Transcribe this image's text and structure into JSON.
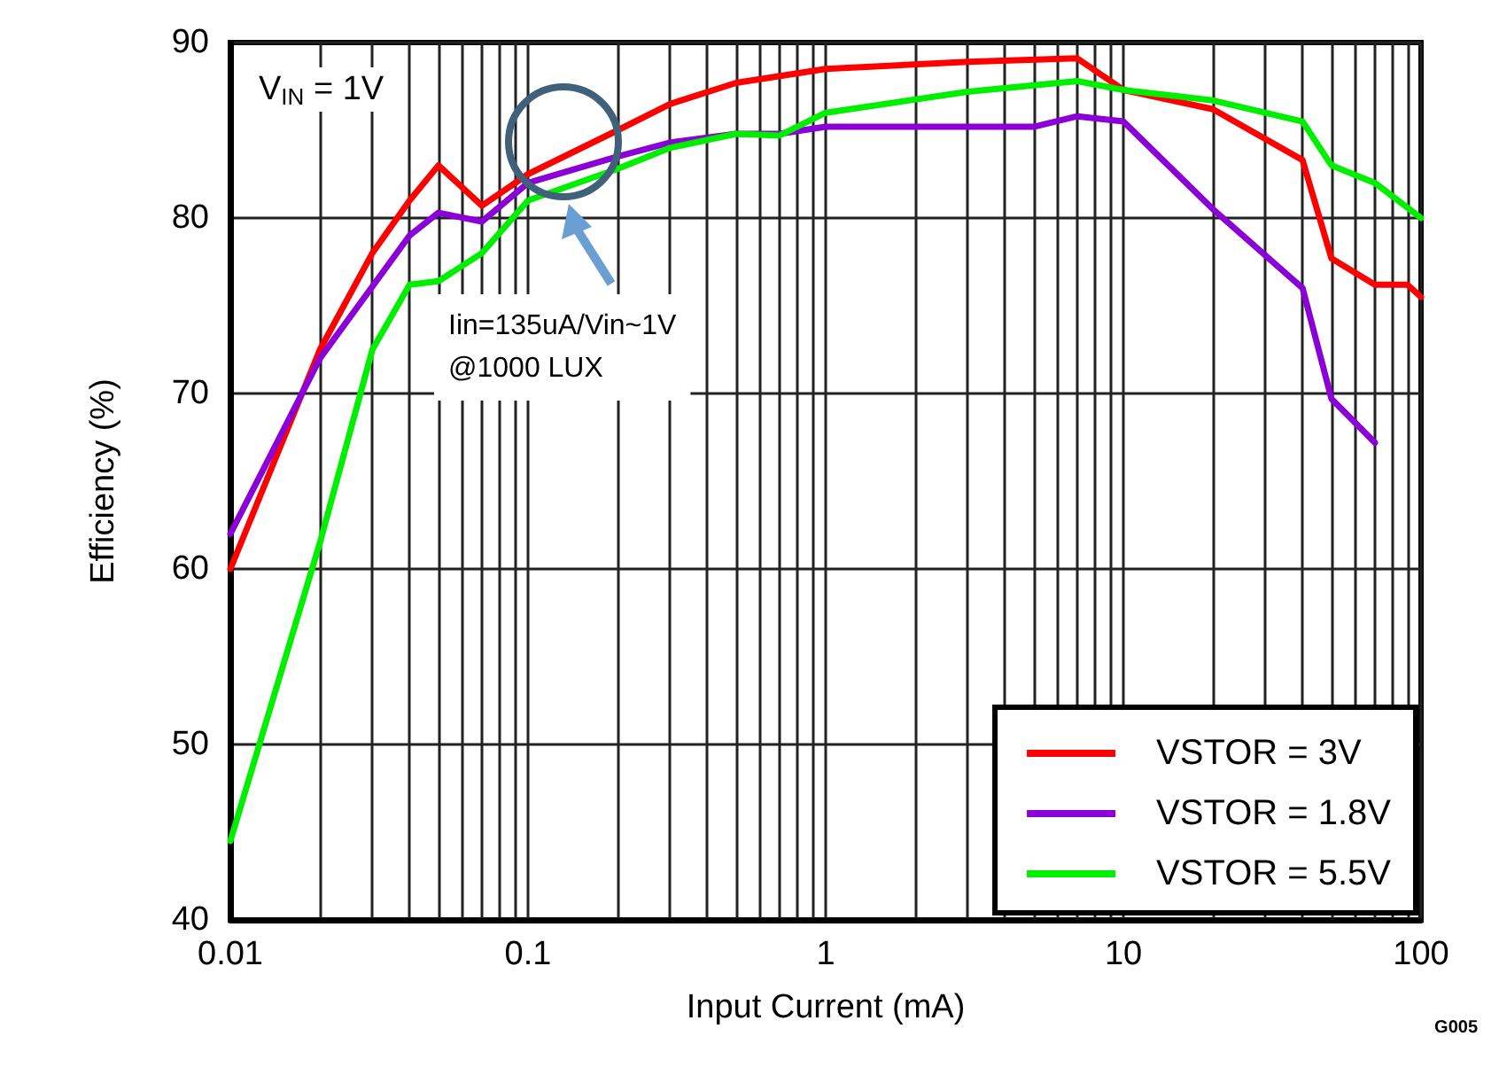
{
  "chart_data": {
    "type": "line",
    "xlabel": "Input Current (mA)",
    "ylabel": "Efficiency (%)",
    "log": "x",
    "xlim": [
      0.01,
      100
    ],
    "xticks": [
      0.01,
      0.1,
      1,
      10,
      100
    ],
    "ylim": [
      40,
      90
    ],
    "yticks": [
      40,
      50,
      60,
      70,
      80,
      90
    ],
    "grid": true,
    "legend": "bottom right",
    "annotations": [
      "V$_{IN}$ = 1V",
      "Iin=135uA/Vin~1V\n@1000 LUX",
      "G005"
    ],
    "series": [
      {
        "name": "VSTOR = 3V",
        "color": "#ff0000",
        "x": [
          0.01,
          0.02,
          0.03,
          0.04,
          0.05,
          0.07,
          0.1,
          0.2,
          0.3,
          0.5,
          1,
          3,
          7,
          10,
          20,
          40,
          50,
          70,
          90,
          100
        ],
        "values": [
          60,
          72.5,
          78,
          81,
          83,
          80.7,
          82.5,
          85,
          86.5,
          87.7,
          88.5,
          88.9,
          89.1,
          87.3,
          86.2,
          83.3,
          77.7,
          76.2,
          76.2,
          75.5
        ]
      },
      {
        "name": "VSTOR = 1.8V",
        "color": "#8b00d6",
        "x": [
          0.01,
          0.02,
          0.04,
          0.05,
          0.07,
          0.1,
          0.2,
          0.3,
          0.5,
          0.7,
          1,
          5,
          7,
          10,
          20,
          40,
          50,
          70
        ],
        "values": [
          62,
          72,
          79,
          80.3,
          79.8,
          82,
          83.5,
          84.3,
          84.8,
          84.8,
          85.2,
          85.2,
          85.8,
          85.5,
          80.5,
          76,
          69.7,
          67.2
        ]
      },
      {
        "name": "VSTOR = 5.5V",
        "color": "#00ee00",
        "x": [
          0.01,
          0.02,
          0.03,
          0.04,
          0.05,
          0.07,
          0.1,
          0.2,
          0.3,
          0.5,
          0.7,
          1,
          3,
          7,
          10,
          20,
          40,
          50,
          70,
          100
        ],
        "values": [
          44.5,
          61.5,
          72.5,
          76.2,
          76.4,
          78,
          81,
          82.8,
          84,
          84.8,
          84.7,
          86,
          87.2,
          87.8,
          87.3,
          86.7,
          85.5,
          83,
          82,
          80
        ]
      }
    ]
  }
}
